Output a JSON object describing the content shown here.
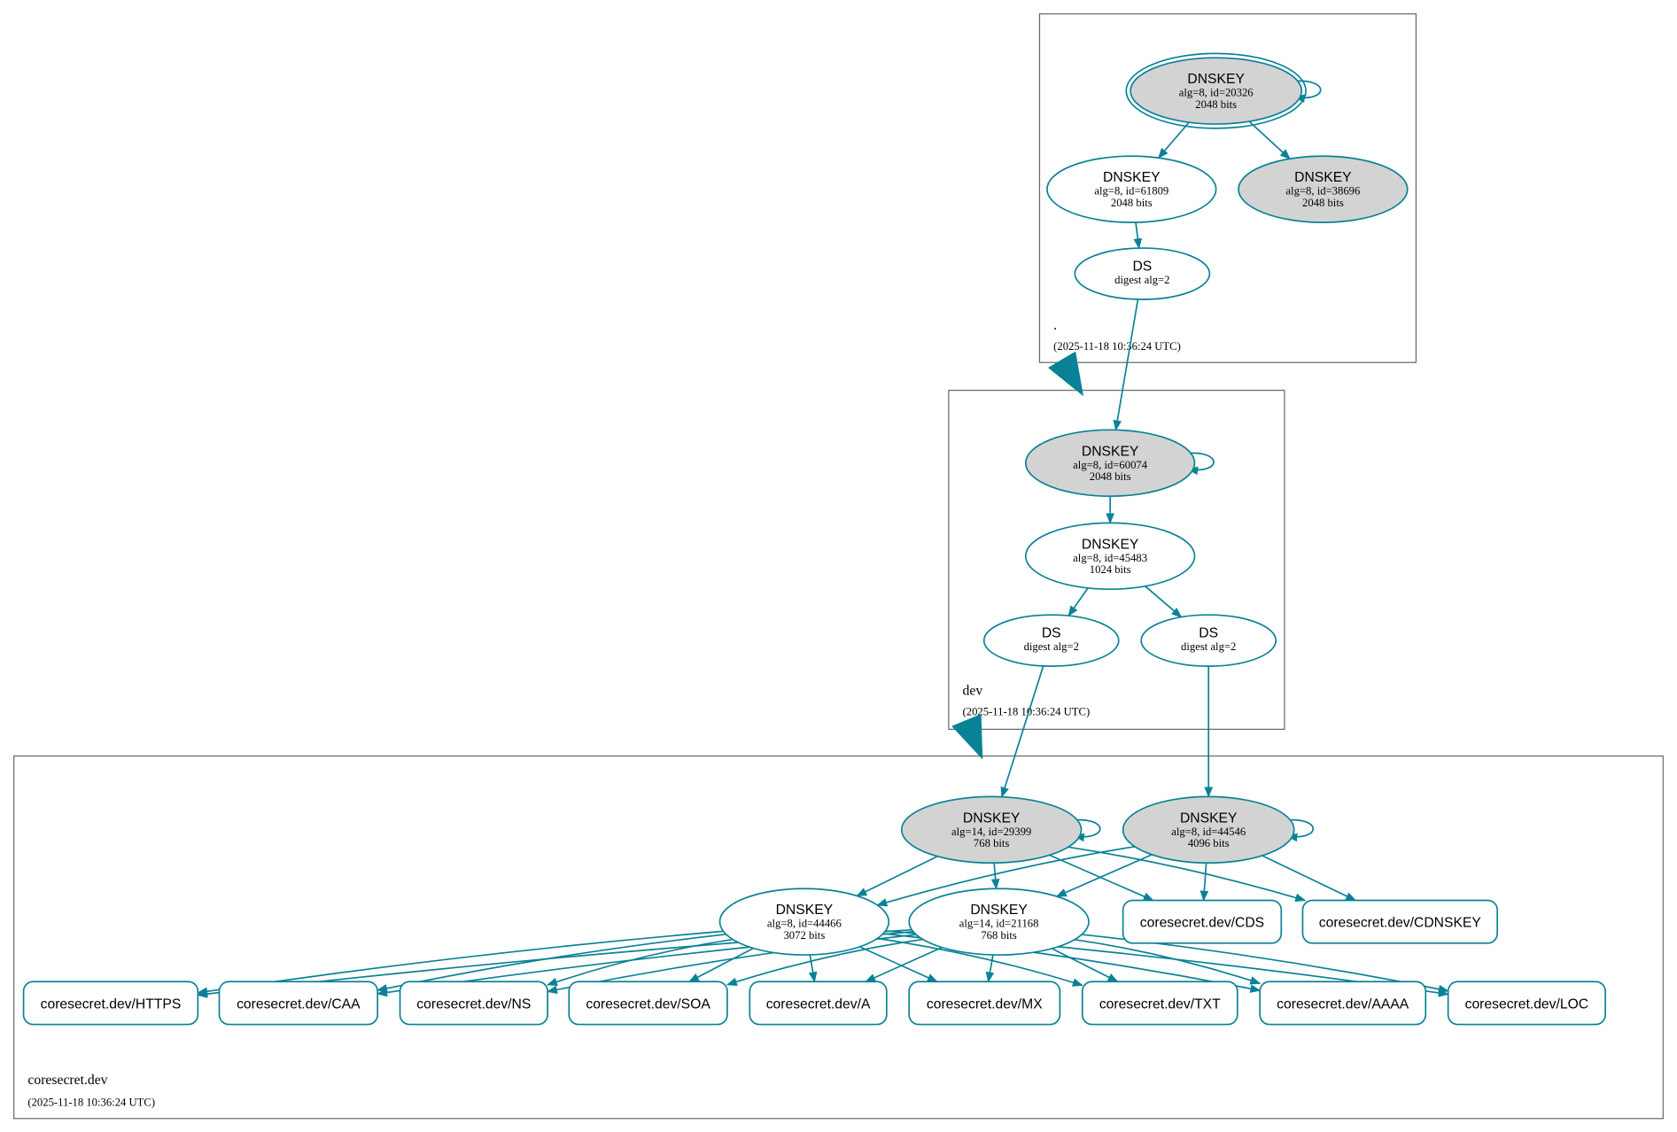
{
  "colors": {
    "edge": "#0a8296",
    "ksk_fill": "#d3d3d3",
    "cluster_border": "#666666"
  },
  "clusters": {
    "root": {
      "label": ".",
      "timestamp": "(2025-11-18 10:36:24 UTC)"
    },
    "dev": {
      "label": "dev",
      "timestamp": "(2025-11-18 10:36:24 UTC)"
    },
    "coresecret": {
      "label": "coresecret.dev",
      "timestamp": "(2025-11-18 10:36:24 UTC)"
    }
  },
  "nodes": {
    "k20326": {
      "title": "DNSKEY",
      "sub1": "alg=8, id=20326",
      "sub2": "2048 bits",
      "fill": "gray",
      "trust_anchor": true
    },
    "k61809": {
      "title": "DNSKEY",
      "sub1": "alg=8, id=61809",
      "sub2": "2048 bits",
      "fill": "white"
    },
    "k38696": {
      "title": "DNSKEY",
      "sub1": "alg=8, id=38696",
      "sub2": "2048 bits",
      "fill": "gray"
    },
    "dsroot": {
      "title": "DS",
      "sub1": "digest alg=2"
    },
    "k60074": {
      "title": "DNSKEY",
      "sub1": "alg=8, id=60074",
      "sub2": "2048 bits",
      "fill": "gray"
    },
    "k45483": {
      "title": "DNSKEY",
      "sub1": "alg=8, id=45483",
      "sub2": "1024 bits",
      "fill": "white"
    },
    "ds1": {
      "title": "DS",
      "sub1": "digest alg=2"
    },
    "ds2": {
      "title": "DS",
      "sub1": "digest alg=2"
    },
    "k29399": {
      "title": "DNSKEY",
      "sub1": "alg=14, id=29399",
      "sub2": "768 bits",
      "fill": "gray"
    },
    "k44546": {
      "title": "DNSKEY",
      "sub1": "alg=8, id=44546",
      "sub2": "4096 bits",
      "fill": "gray"
    },
    "k44466": {
      "title": "DNSKEY",
      "sub1": "alg=8, id=44466",
      "sub2": "3072 bits",
      "fill": "white"
    },
    "k21168": {
      "title": "DNSKEY",
      "sub1": "alg=14, id=21168",
      "sub2": "768 bits",
      "fill": "white"
    },
    "cds": {
      "title": "coresecret.dev/CDS"
    },
    "cdnskey": {
      "title": "coresecret.dev/CDNSKEY"
    },
    "https": {
      "title": "coresecret.dev/HTTPS"
    },
    "caa": {
      "title": "coresecret.dev/CAA"
    },
    "ns": {
      "title": "coresecret.dev/NS"
    },
    "soa": {
      "title": "coresecret.dev/SOA"
    },
    "a": {
      "title": "coresecret.dev/A"
    },
    "mx": {
      "title": "coresecret.dev/MX"
    },
    "txt": {
      "title": "coresecret.dev/TXT"
    },
    "aaaa": {
      "title": "coresecret.dev/AAAA"
    },
    "loc": {
      "title": "coresecret.dev/LOC"
    }
  },
  "edges": [
    [
      "k20326",
      "k20326"
    ],
    [
      "k20326",
      "k61809"
    ],
    [
      "k20326",
      "k38696"
    ],
    [
      "k61809",
      "dsroot"
    ],
    [
      "dsroot",
      "k60074"
    ],
    [
      "k60074",
      "k60074"
    ],
    [
      "k60074",
      "k45483"
    ],
    [
      "k45483",
      "ds1"
    ],
    [
      "k45483",
      "ds2"
    ],
    [
      "ds1",
      "k29399"
    ],
    [
      "ds2",
      "k44546"
    ],
    [
      "k29399",
      "k29399"
    ],
    [
      "k44546",
      "k44546"
    ],
    [
      "k29399",
      "k44466"
    ],
    [
      "k29399",
      "k21168"
    ],
    [
      "k29399",
      "cds"
    ],
    [
      "k29399",
      "cdnskey"
    ],
    [
      "k44546",
      "k44466"
    ],
    [
      "k44546",
      "k21168"
    ],
    [
      "k44546",
      "cds"
    ],
    [
      "k44546",
      "cdnskey"
    ],
    [
      "k44466",
      "https"
    ],
    [
      "k44466",
      "caa"
    ],
    [
      "k44466",
      "ns"
    ],
    [
      "k44466",
      "soa"
    ],
    [
      "k44466",
      "a"
    ],
    [
      "k44466",
      "mx"
    ],
    [
      "k44466",
      "txt"
    ],
    [
      "k44466",
      "aaaa"
    ],
    [
      "k44466",
      "loc"
    ],
    [
      "k21168",
      "https"
    ],
    [
      "k21168",
      "caa"
    ],
    [
      "k21168",
      "ns"
    ],
    [
      "k21168",
      "soa"
    ],
    [
      "k21168",
      "a"
    ],
    [
      "k21168",
      "mx"
    ],
    [
      "k21168",
      "txt"
    ],
    [
      "k21168",
      "aaaa"
    ],
    [
      "k21168",
      "loc"
    ]
  ],
  "delegations": [
    [
      "root",
      "dev"
    ],
    [
      "dev",
      "coresecret"
    ]
  ]
}
